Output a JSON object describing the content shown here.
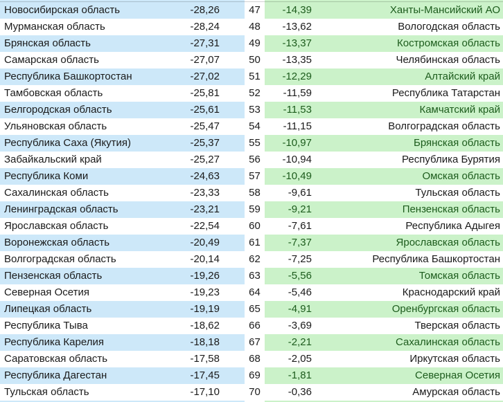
{
  "table": {
    "description": "Two-sided regional ranking table, ranks 47-70",
    "colors": {
      "left_highlight": "#CDE8F9",
      "right_highlight": "#CBF2C9",
      "text": "#1a1a1a",
      "right_highlight_text": "#1d5c1d",
      "row_background": "#ffffff"
    },
    "columns": [
      "left_region",
      "left_value",
      "rank",
      "right_value",
      "right_region"
    ],
    "rows": [
      {
        "left_region": "Новосибирская область",
        "left_value": "-28,26",
        "rank": "47",
        "right_value": "-14,39",
        "right_region": "Ханты-Мансийский АО",
        "shaded": true
      },
      {
        "left_region": "Мурманская область",
        "left_value": "-28,24",
        "rank": "48",
        "right_value": "-13,62",
        "right_region": "Вологодская область",
        "shaded": false
      },
      {
        "left_region": "Брянская область",
        "left_value": "-27,31",
        "rank": "49",
        "right_value": "-13,37",
        "right_region": "Костромская область",
        "shaded": true
      },
      {
        "left_region": "Самарская область",
        "left_value": "-27,07",
        "rank": "50",
        "right_value": "-13,35",
        "right_region": "Челябинская область",
        "shaded": false
      },
      {
        "left_region": "Республика Башкортостан",
        "left_value": "-27,02",
        "rank": "51",
        "right_value": "-12,29",
        "right_region": "Алтайский край",
        "shaded": true
      },
      {
        "left_region": "Тамбовская область",
        "left_value": "-25,81",
        "rank": "52",
        "right_value": "-11,59",
        "right_region": "Республика Татарстан",
        "shaded": false
      },
      {
        "left_region": "Белгородская область",
        "left_value": "-25,61",
        "rank": "53",
        "right_value": "-11,53",
        "right_region": "Камчатский край",
        "shaded": true
      },
      {
        "left_region": "Ульяновская область",
        "left_value": "-25,47",
        "rank": "54",
        "right_value": "-11,15",
        "right_region": "Волгоградская область",
        "shaded": false
      },
      {
        "left_region": "Республика Саха (Якутия)",
        "left_value": "-25,37",
        "rank": "55",
        "right_value": "-10,97",
        "right_region": "Брянская область",
        "shaded": true
      },
      {
        "left_region": "Забайкальский край",
        "left_value": "-25,27",
        "rank": "56",
        "right_value": "-10,94",
        "right_region": "Республика Бурятия",
        "shaded": false
      },
      {
        "left_region": "Республика Коми",
        "left_value": "-24,63",
        "rank": "57",
        "right_value": "-10,49",
        "right_region": "Омская область",
        "shaded": true
      },
      {
        "left_region": "Сахалинская область",
        "left_value": "-23,33",
        "rank": "58",
        "right_value": "-9,61",
        "right_region": "Тульская область",
        "shaded": false
      },
      {
        "left_region": "Ленинградская область",
        "left_value": "-23,21",
        "rank": "59",
        "right_value": "-9,21",
        "right_region": "Пензенская область",
        "shaded": true
      },
      {
        "left_region": "Ярославская область",
        "left_value": "-22,54",
        "rank": "60",
        "right_value": "-7,61",
        "right_region": "Республика Адыгея",
        "shaded": false
      },
      {
        "left_region": "Воронежская область",
        "left_value": "-20,49",
        "rank": "61",
        "right_value": "-7,37",
        "right_region": "Ярославская область",
        "shaded": true
      },
      {
        "left_region": "Волгоградская область",
        "left_value": "-20,14",
        "rank": "62",
        "right_value": "-7,25",
        "right_region": "Республика Башкортостан",
        "shaded": false
      },
      {
        "left_region": "Пензенская область",
        "left_value": "-19,26",
        "rank": "63",
        "right_value": "-5,56",
        "right_region": "Томская область",
        "shaded": true
      },
      {
        "left_region": "Северная Осетия",
        "left_value": "-19,23",
        "rank": "64",
        "right_value": "-5,46",
        "right_region": "Краснодарский край",
        "shaded": false
      },
      {
        "left_region": "Липецкая область",
        "left_value": "-19,19",
        "rank": "65",
        "right_value": "-4,91",
        "right_region": "Оренбургская область",
        "shaded": true
      },
      {
        "left_region": "Республика Тыва",
        "left_value": "-18,62",
        "rank": "66",
        "right_value": "-3,69",
        "right_region": "Тверская область",
        "shaded": false
      },
      {
        "left_region": "Республика Карелия",
        "left_value": "-18,18",
        "rank": "67",
        "right_value": "-2,21",
        "right_region": "Сахалинская область",
        "shaded": true
      },
      {
        "left_region": "Саратовская область",
        "left_value": "-17,58",
        "rank": "68",
        "right_value": "-2,05",
        "right_region": "Иркутская область",
        "shaded": false
      },
      {
        "left_region": "Республика Дагестан",
        "left_value": "-17,45",
        "rank": "69",
        "right_value": "-1,81",
        "right_region": "Северная Осетия",
        "shaded": true
      },
      {
        "left_region": "Тульская область",
        "left_value": "-17,10",
        "rank": "70",
        "right_value": "-0,36",
        "right_region": "Амурская область",
        "shaded": false
      }
    ]
  }
}
